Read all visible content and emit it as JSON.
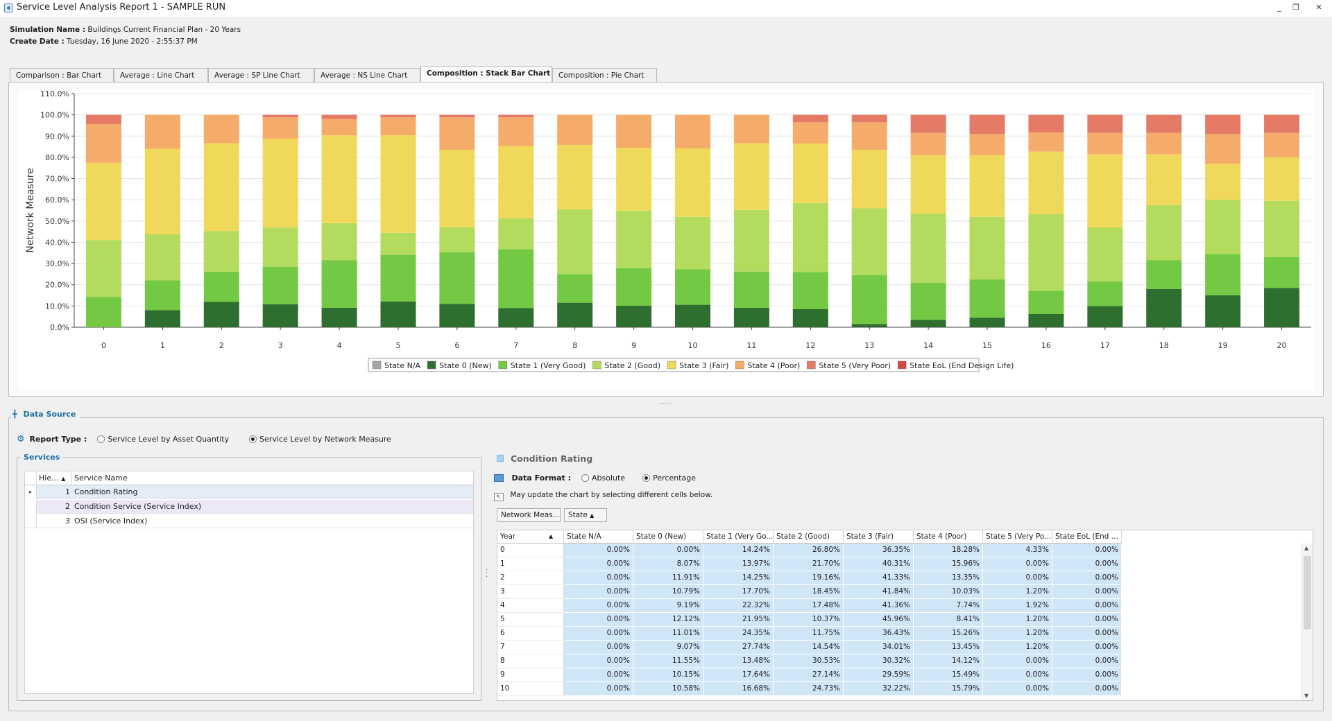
{
  "window": {
    "title": "Service Level Analysis Report 1 - SAMPLE RUN",
    "controls": [
      "_",
      "❐",
      "✕"
    ]
  },
  "meta": {
    "sim_label": "Simulation Name :",
    "sim_value": "Buildings Current Financial Plan - 20 Years",
    "date_label": "Create Date :",
    "date_value": "Tuesday, 16 June 2020 - 2:55:37 PM"
  },
  "tabs": [
    {
      "label": "Comparison : Bar Chart"
    },
    {
      "label": "Average : Line Chart"
    },
    {
      "label": "Average : SP Line Chart"
    },
    {
      "label": "Average : NS Line Chart"
    },
    {
      "label": "Composition : Stack Bar Chart",
      "active": true
    },
    {
      "label": "Composition : Pie Chart"
    }
  ],
  "splitter": ".....",
  "chart_data": {
    "type": "bar",
    "stacked": true,
    "ylabel": "Network Measure",
    "ylim": [
      0,
      110
    ],
    "yticks": [
      "0.0%",
      "10.0%",
      "20.0%",
      "30.0%",
      "40.0%",
      "50.0%",
      "60.0%",
      "70.0%",
      "80.0%",
      "90.0%",
      "100.0%",
      "110.0%"
    ],
    "categories": [
      "0",
      "1",
      "2",
      "3",
      "4",
      "5",
      "6",
      "7",
      "8",
      "9",
      "10",
      "11",
      "12",
      "13",
      "14",
      "15",
      "16",
      "17",
      "18",
      "19",
      "20"
    ],
    "series": [
      {
        "name": "State N/A",
        "color": "#a6a6a6",
        "values": [
          0,
          0,
          0,
          0,
          0,
          0,
          0,
          0,
          0,
          0,
          0,
          0,
          0,
          0,
          0,
          0,
          0,
          0,
          0,
          0,
          0
        ]
      },
      {
        "name": "State 0 (New)",
        "color": "#2e6e2e",
        "values": [
          0,
          8.07,
          11.91,
          10.79,
          9.19,
          12.12,
          11.01,
          9.07,
          11.55,
          10.15,
          10.58,
          9.2,
          8.5,
          1.5,
          3.5,
          4.5,
          6.2,
          10,
          18,
          15,
          18.5
        ]
      },
      {
        "name": "State 1 (Very Good)",
        "color": "#73c943",
        "values": [
          14.24,
          13.97,
          14.25,
          17.7,
          22.32,
          21.95,
          24.35,
          27.74,
          13.48,
          17.64,
          16.68,
          17,
          17.5,
          23,
          17.5,
          18,
          11,
          11.5,
          13.5,
          19.5,
          14.5
        ]
      },
      {
        "name": "State 2 (Good)",
        "color": "#b3db5e",
        "values": [
          26.8,
          21.7,
          19.16,
          18.45,
          17.48,
          10.37,
          11.75,
          14.54,
          30.53,
          27.14,
          24.73,
          29,
          32.5,
          31.5,
          32.5,
          29.5,
          36,
          25.5,
          26,
          25.5,
          26.5
        ]
      },
      {
        "name": "State 3 (Fair)",
        "color": "#f0d95a",
        "values": [
          36.35,
          40.31,
          41.33,
          41.84,
          41.36,
          45.96,
          36.43,
          34.01,
          30.32,
          29.59,
          32.22,
          31.5,
          28,
          27.5,
          27.5,
          29,
          29.5,
          34.5,
          24,
          17,
          20.5
        ]
      },
      {
        "name": "State 4 (Poor)",
        "color": "#f5ab6a",
        "values": [
          18.28,
          15.96,
          13.35,
          10.03,
          7.74,
          8.41,
          15.26,
          13.45,
          14.12,
          15.49,
          15.79,
          13.3,
          10,
          13,
          10.5,
          10,
          9,
          10,
          10,
          14,
          11.5
        ]
      },
      {
        "name": "State 5 (Very Poor)",
        "color": "#e57a66",
        "values": [
          4.33,
          0,
          0,
          1.2,
          1.92,
          1.2,
          1.2,
          1.2,
          0,
          0,
          0,
          0,
          3.5,
          3.5,
          8.5,
          9,
          8.3,
          8.5,
          8.5,
          9,
          8.5
        ]
      },
      {
        "name": "State EoL (End Design Life)",
        "color": "#cf4a45",
        "values": [
          0,
          0,
          0,
          0,
          0,
          0,
          0,
          0,
          0,
          0,
          0,
          0,
          0,
          0,
          0,
          0,
          0,
          0,
          0,
          0,
          0
        ]
      }
    ]
  },
  "data_source": {
    "title": "Data Source",
    "report_type_label": "Report Type :",
    "options": [
      {
        "label": "Service Level by Asset Quantity",
        "selected": false
      },
      {
        "label": "Service Level by Network Measure",
        "selected": true
      }
    ]
  },
  "services": {
    "title": "Services",
    "columns": [
      "Hie...",
      "Service Name"
    ],
    "rows": [
      {
        "hier": "1",
        "name": "Condition Rating"
      },
      {
        "hier": "2",
        "name": "Condition Service (Service Index)"
      },
      {
        "hier": "3",
        "name": "OSI (Service Index)"
      }
    ]
  },
  "condition": {
    "title": "Condition Rating",
    "format_label": "Data Format :",
    "format_options": [
      {
        "label": "Absolute",
        "selected": false
      },
      {
        "label": "Percentage",
        "selected": true
      }
    ],
    "hint": "May update the chart by selecting different cells below.",
    "pills": [
      "Network Meas...",
      "State"
    ],
    "columns": [
      "Year",
      "State N/A",
      "State 0 (New)",
      "State 1 (Very Go...",
      "State 2 (Good)",
      "State 3 (Fair)",
      "State 4 (Poor)",
      "State 5 (Very Po...",
      "State EoL (End ..."
    ],
    "rows": [
      [
        "0",
        "0.00%",
        "0.00%",
        "14.24%",
        "26.80%",
        "36.35%",
        "18.28%",
        "4.33%",
        "0.00%"
      ],
      [
        "1",
        "0.00%",
        "8.07%",
        "13.97%",
        "21.70%",
        "40.31%",
        "15.96%",
        "0.00%",
        "0.00%"
      ],
      [
        "2",
        "0.00%",
        "11.91%",
        "14.25%",
        "19.16%",
        "41.33%",
        "13.35%",
        "0.00%",
        "0.00%"
      ],
      [
        "3",
        "0.00%",
        "10.79%",
        "17.70%",
        "18.45%",
        "41.84%",
        "10.03%",
        "1.20%",
        "0.00%"
      ],
      [
        "4",
        "0.00%",
        "9.19%",
        "22.32%",
        "17.48%",
        "41.36%",
        "7.74%",
        "1.92%",
        "0.00%"
      ],
      [
        "5",
        "0.00%",
        "12.12%",
        "21.95%",
        "10.37%",
        "45.96%",
        "8.41%",
        "1.20%",
        "0.00%"
      ],
      [
        "6",
        "0.00%",
        "11.01%",
        "24.35%",
        "11.75%",
        "36.43%",
        "15.26%",
        "1.20%",
        "0.00%"
      ],
      [
        "7",
        "0.00%",
        "9.07%",
        "27.74%",
        "14.54%",
        "34.01%",
        "13.45%",
        "1.20%",
        "0.00%"
      ],
      [
        "8",
        "0.00%",
        "11.55%",
        "13.48%",
        "30.53%",
        "30.32%",
        "14.12%",
        "0.00%",
        "0.00%"
      ],
      [
        "9",
        "0.00%",
        "10.15%",
        "17.64%",
        "27.14%",
        "29.59%",
        "15.49%",
        "0.00%",
        "0.00%"
      ],
      [
        "10",
        "0.00%",
        "10.58%",
        "16.68%",
        "24.73%",
        "32.22%",
        "15.79%",
        "0.00%",
        "0.00%"
      ]
    ]
  }
}
